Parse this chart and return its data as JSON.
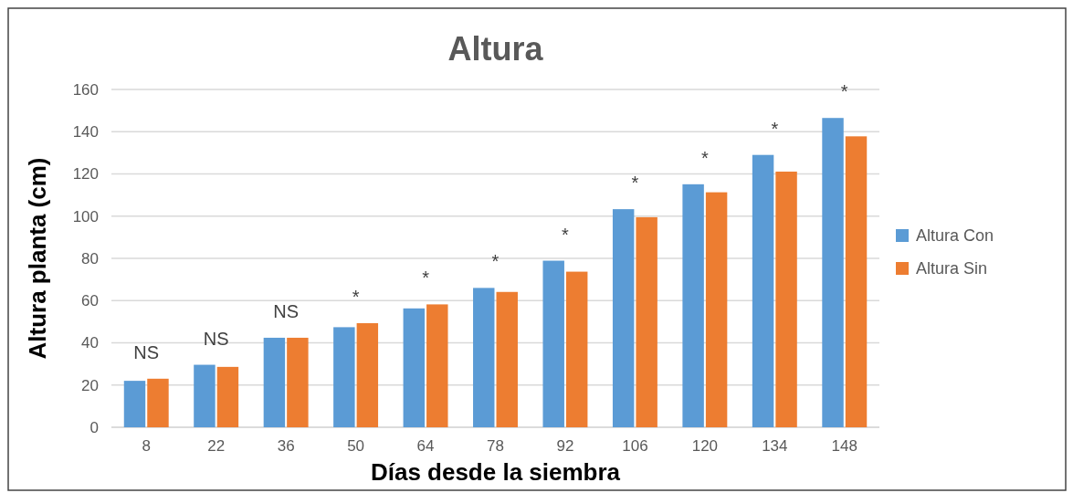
{
  "chart_data": {
    "type": "bar",
    "title": "Altura",
    "xlabel": "Días desde la siembra",
    "ylabel": "Altura planta (cm)",
    "categories": [
      "8",
      "22",
      "36",
      "50",
      "64",
      "78",
      "92",
      "106",
      "120",
      "134",
      "148"
    ],
    "series": [
      {
        "name": "Altura Con",
        "color": "#5b9bd5",
        "values": [
          22,
          29.6,
          42.4,
          47.4,
          56.3,
          66,
          78.9,
          103.3,
          115.1,
          129,
          146.5
        ]
      },
      {
        "name": "Altura Sin",
        "color": "#ed7d31",
        "values": [
          23,
          28.6,
          42.4,
          49.3,
          58.2,
          64.1,
          73.7,
          99.5,
          111.3,
          121.1,
          137.8
        ]
      }
    ],
    "annotations": [
      "NS",
      "NS",
      "NS",
      "*",
      "*",
      "*",
      "*",
      "*",
      "*",
      "*",
      "*"
    ],
    "ylim": [
      0,
      160
    ],
    "yticks": [
      0,
      20,
      40,
      60,
      80,
      100,
      120,
      140,
      160
    ],
    "grid": "y",
    "legend": "right"
  }
}
